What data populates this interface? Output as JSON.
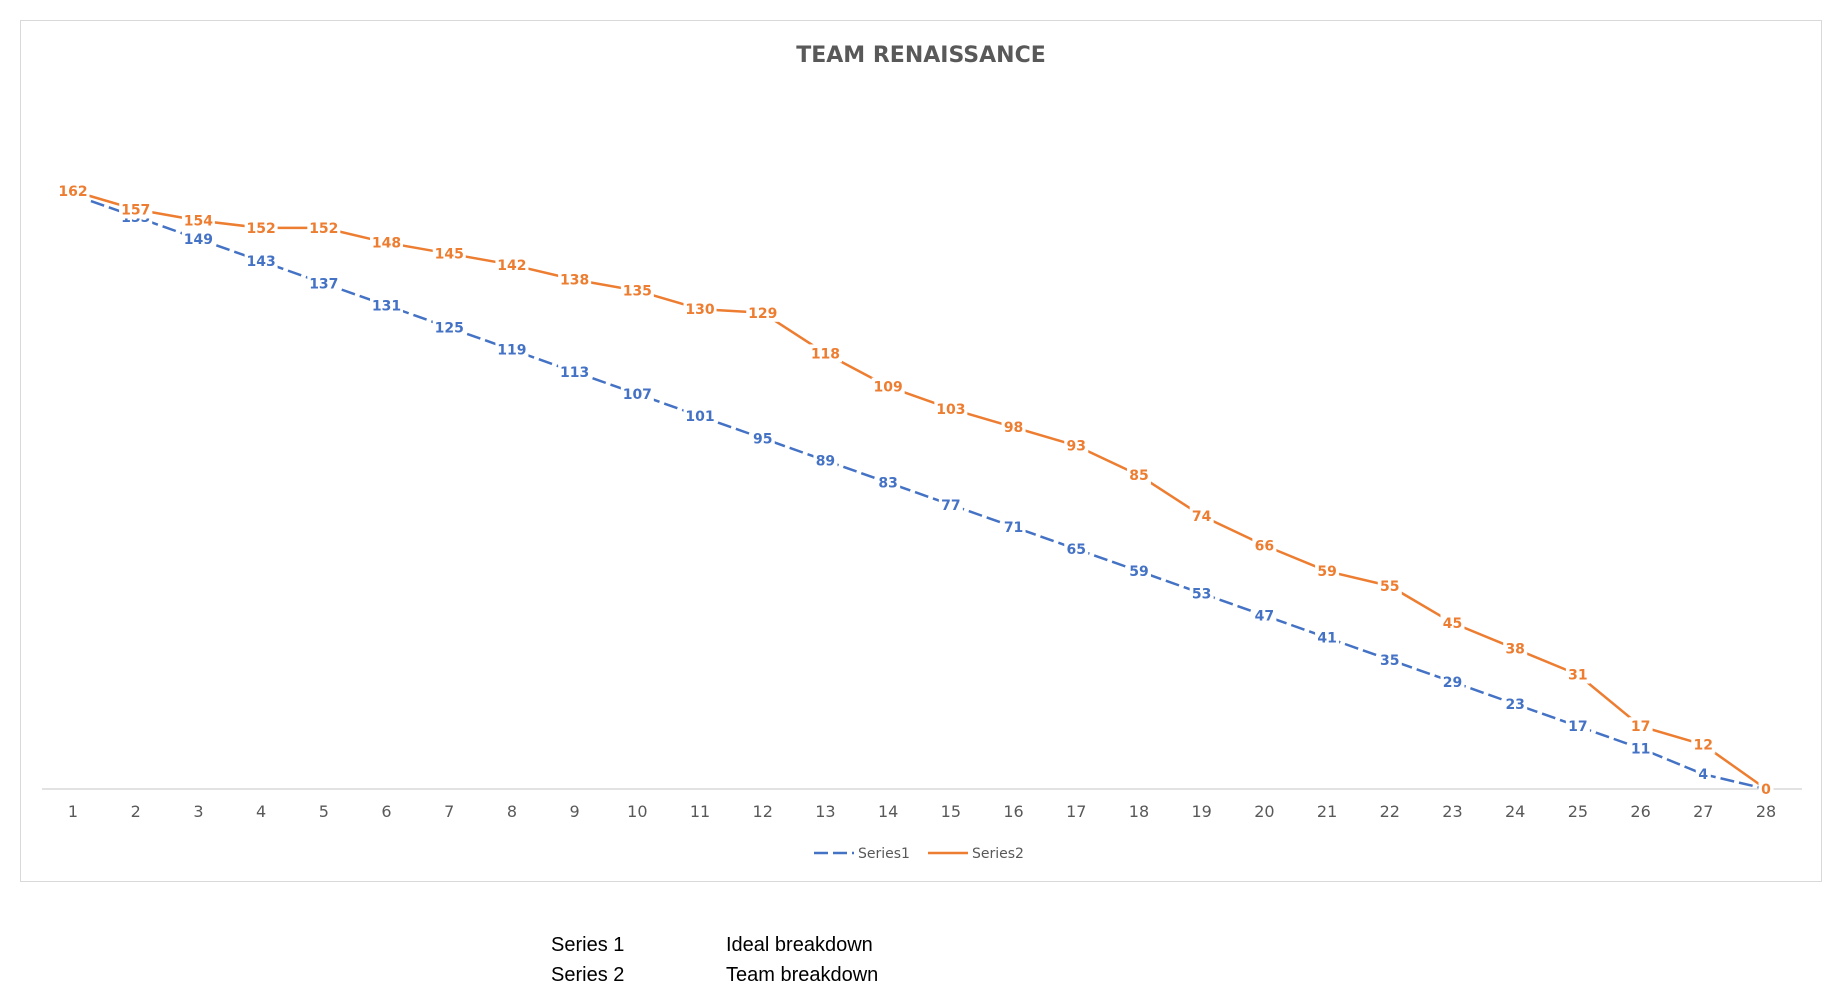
{
  "chart_data": {
    "type": "line",
    "title": "TEAM RENAISSANCE",
    "x": [
      1,
      2,
      3,
      4,
      5,
      6,
      7,
      8,
      9,
      10,
      11,
      12,
      13,
      14,
      15,
      16,
      17,
      18,
      19,
      20,
      21,
      22,
      23,
      24,
      25,
      26,
      27,
      28
    ],
    "ylim": [
      0,
      175
    ],
    "grid": false,
    "legend": "bottom",
    "series": [
      {
        "name": "Series1",
        "color": "#4472c4",
        "dash": "dashed",
        "values": [
          161,
          155,
          149,
          143,
          137,
          131,
          125,
          119,
          113,
          107,
          101,
          95,
          89,
          83,
          77,
          71,
          65,
          59,
          53,
          47,
          41,
          35,
          29,
          23,
          17,
          11,
          4,
          0
        ]
      },
      {
        "name": "Series2",
        "color": "#ed7d31",
        "dash": "solid",
        "values": [
          162,
          157,
          154,
          152,
          152,
          148,
          145,
          142,
          138,
          135,
          130,
          129,
          118,
          109,
          103,
          98,
          93,
          85,
          74,
          66,
          59,
          55,
          45,
          38,
          31,
          17,
          12,
          0
        ]
      }
    ]
  },
  "notes": [
    {
      "key": "Series 1",
      "value": "Ideal breakdown"
    },
    {
      "key": "Series 2",
      "value": "Team breakdown"
    }
  ]
}
